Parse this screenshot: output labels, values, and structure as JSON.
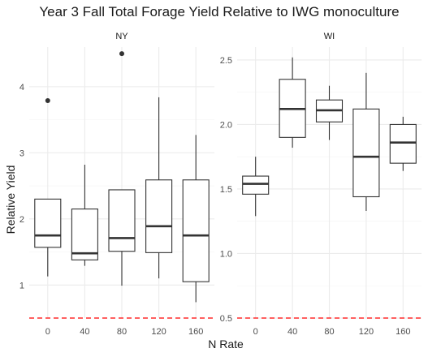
{
  "chart_data": {
    "type": "box",
    "title": "Year 3 Fall Total Forage Yield Relative to IWG monoculture",
    "xlabel": "N Rate",
    "ylabel": "Relative Yield",
    "categories": [
      "0",
      "40",
      "80",
      "120",
      "160"
    ],
    "reference_line": {
      "y": 0.5,
      "color": "#ff0000",
      "style": "dashed"
    },
    "grid": true,
    "panels": [
      {
        "name": "NY",
        "ylim": [
          0.5,
          4.6
        ],
        "yticks": [
          1,
          2,
          3,
          4
        ],
        "ytick_labels": [
          "1",
          "2",
          "3",
          "4"
        ],
        "boxes": [
          {
            "category": "0",
            "min": 1.13,
            "q1": 1.57,
            "median": 1.75,
            "q3": 2.3,
            "max": 2.3,
            "outliers": [
              3.79
            ]
          },
          {
            "category": "40",
            "min": 1.29,
            "q1": 1.38,
            "median": 1.48,
            "q3": 2.15,
            "max": 2.82,
            "outliers": []
          },
          {
            "category": "80",
            "min": 0.99,
            "q1": 1.51,
            "median": 1.71,
            "q3": 2.44,
            "max": 2.44,
            "outliers": [
              4.5
            ]
          },
          {
            "category": "120",
            "min": 1.1,
            "q1": 1.49,
            "median": 1.89,
            "q3": 2.59,
            "max": 3.84,
            "outliers": []
          },
          {
            "category": "160",
            "min": 0.74,
            "q1": 1.05,
            "median": 1.75,
            "q3": 2.59,
            "max": 3.27,
            "outliers": []
          }
        ]
      },
      {
        "name": "WI",
        "ylim": [
          0.5,
          2.6
        ],
        "yticks": [
          0.5,
          1.0,
          1.5,
          2.0,
          2.5
        ],
        "ytick_labels": [
          "0.5",
          "1.0",
          "1.5",
          "2.0",
          "2.5"
        ],
        "boxes": [
          {
            "category": "0",
            "min": 1.29,
            "q1": 1.46,
            "median": 1.54,
            "q3": 1.6,
            "max": 1.75,
            "outliers": []
          },
          {
            "category": "40",
            "min": 1.82,
            "q1": 1.9,
            "median": 2.12,
            "q3": 2.35,
            "max": 2.52,
            "outliers": []
          },
          {
            "category": "80",
            "min": 1.88,
            "q1": 2.02,
            "median": 2.11,
            "q3": 2.19,
            "max": 2.3,
            "outliers": []
          },
          {
            "category": "120",
            "min": 1.33,
            "q1": 1.44,
            "median": 1.75,
            "q3": 2.12,
            "max": 2.4,
            "outliers": []
          },
          {
            "category": "160",
            "min": 1.64,
            "q1": 1.7,
            "median": 1.86,
            "q3": 2.0,
            "max": 2.06,
            "outliers": []
          }
        ]
      }
    ]
  }
}
